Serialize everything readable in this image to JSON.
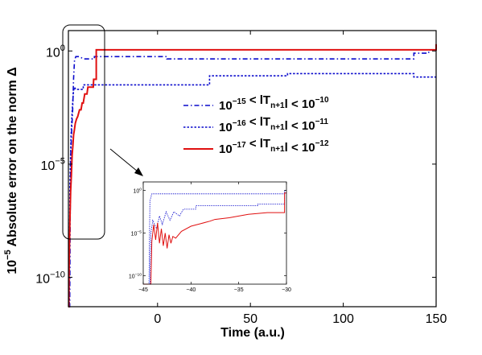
{
  "chart_data": {
    "type": "line",
    "xlabel": "Time (a.u.)",
    "ylabel_prefix": "10",
    "ylabel_prefix_exp": "−5",
    "ylabel": "Absolute error on the norm  Δ",
    "xlim": [
      -48,
      150
    ],
    "ylim_log10": [
      -11.3,
      0.9
    ],
    "x_ticks": [
      0,
      50,
      100,
      150
    ],
    "x_tick_labels": [
      "0",
      "50",
      "100",
      "150"
    ],
    "y_ticks_log10": [
      0,
      -5,
      -10
    ],
    "y_tick_labels": [
      {
        "base": "10",
        "exp": "0"
      },
      {
        "base": "10",
        "exp": "−5"
      },
      {
        "base": "10",
        "exp": "−10"
      }
    ],
    "legend_placement": "center-right",
    "series": [
      {
        "legend": [
          {
            "t": "10"
          },
          {
            "t": "−15",
            "sup": true
          },
          {
            "t": " < lT"
          },
          {
            "t": "n+1",
            "sub": true
          },
          {
            "t": "l < 10"
          },
          {
            "t": "−10",
            "sup": true
          }
        ],
        "color": "#0a0acc",
        "dash": "dashdot",
        "points": [
          [
            -48,
            -11.3
          ],
          [
            -47.3,
            -11.3
          ],
          [
            -47,
            -7
          ],
          [
            -46.7,
            -4.5
          ],
          [
            -46.2,
            -3.5
          ],
          [
            -45.7,
            -2.6
          ],
          [
            -45.2,
            -1.2
          ],
          [
            -44.7,
            -0.4
          ],
          [
            -44,
            -0.25
          ],
          [
            -42,
            -0.25
          ],
          [
            -40,
            -0.35
          ],
          [
            -34,
            -0.35
          ],
          [
            -34,
            -0.25
          ],
          [
            5,
            -0.25
          ],
          [
            5,
            -0.35
          ],
          [
            138,
            -0.35
          ],
          [
            138,
            -0.1
          ],
          [
            146,
            -0.1
          ],
          [
            146,
            0.05
          ],
          [
            150,
            0.05
          ]
        ]
      },
      {
        "legend": [
          {
            "t": "10"
          },
          {
            "t": "−16",
            "sup": true
          },
          {
            "t": " < lT"
          },
          {
            "t": "n+1",
            "sub": true
          },
          {
            "t": "l < 10"
          },
          {
            "t": "−11",
            "sup": true
          }
        ],
        "color": "#0a0acc",
        "dash": "dotted",
        "points": [
          [
            -48,
            -11.3
          ],
          [
            -47.5,
            -11.3
          ],
          [
            -47.2,
            -6
          ],
          [
            -46.6,
            -3.8
          ],
          [
            -46,
            -2.7
          ],
          [
            -45.3,
            -1.8
          ],
          [
            -44.8,
            -1.6
          ],
          [
            -44,
            -1.7
          ],
          [
            -40,
            -1.7
          ],
          [
            -40,
            -1.5
          ],
          [
            28,
            -1.5
          ],
          [
            28,
            -1.1
          ],
          [
            70,
            -1.1
          ],
          [
            70,
            -1.0
          ],
          [
            138,
            -1.0
          ],
          [
            138,
            -1.15
          ],
          [
            150,
            -1.15
          ]
        ]
      },
      {
        "legend": [
          {
            "t": "10"
          },
          {
            "t": "−17",
            "sup": true
          },
          {
            "t": " < lT"
          },
          {
            "t": "n+1",
            "sub": true
          },
          {
            "t": "l < 10"
          },
          {
            "t": "−12",
            "sup": true
          }
        ],
        "color": "#e01010",
        "dash": "solid",
        "points": [
          [
            -48,
            -11.3
          ],
          [
            -47.8,
            -11.3
          ],
          [
            -47.6,
            -9.5
          ],
          [
            -47.2,
            -7.5
          ],
          [
            -46.8,
            -6.2
          ],
          [
            -46.4,
            -5.5
          ],
          [
            -46.0,
            -4.6
          ],
          [
            -45.6,
            -4.2
          ],
          [
            -45.2,
            -3.7
          ],
          [
            -44.8,
            -3.5
          ],
          [
            -44.3,
            -3.2
          ],
          [
            -43.6,
            -3.0
          ],
          [
            -43.0,
            -2.9
          ],
          [
            -42.0,
            -2.6
          ],
          [
            -41.2,
            -2.6
          ],
          [
            -40.6,
            -2.3
          ],
          [
            -40.0,
            -2.3
          ],
          [
            -39.2,
            -1.9
          ],
          [
            -38.0,
            -1.9
          ],
          [
            -37.5,
            -1.6
          ],
          [
            -34.6,
            -1.6
          ],
          [
            -34.4,
            -1.25
          ],
          [
            -33.0,
            -1.25
          ],
          [
            -33.0,
            0.05
          ],
          [
            150,
            0.05
          ],
          [
            150,
            0.3
          ]
        ]
      }
    ],
    "inset": {
      "xlim": [
        -45,
        -30
      ],
      "ylim_log10": [
        -11,
        1
      ],
      "x_ticks": [
        -45,
        -40,
        -35,
        -30
      ],
      "x_tick_labels": [
        "−45",
        "−40",
        "−35",
        "−30"
      ],
      "y_ticks_log10": [
        0,
        -5,
        -10
      ],
      "y_tick_labels": [
        {
          "base": "10",
          "exp": "0"
        },
        {
          "base": "10",
          "exp": "−5"
        },
        {
          "base": "10",
          "exp": "−10"
        }
      ],
      "series": [
        {
          "color": "#0a0acc",
          "dash": "dotted",
          "points": [
            [
              -45,
              -11
            ],
            [
              -44.3,
              -11
            ],
            [
              -44.2,
              -5
            ],
            [
              -44,
              -3.5
            ],
            [
              -43.6,
              -4.5
            ],
            [
              -43.3,
              -3
            ],
            [
              -43,
              -4
            ],
            [
              -42.6,
              -2.5
            ],
            [
              -42.2,
              -3.5
            ],
            [
              -41.8,
              -2.5
            ],
            [
              -41.2,
              -3
            ],
            [
              -40.8,
              -2.2
            ],
            [
              -39.5,
              -2.2
            ],
            [
              -39.5,
              -1.8
            ],
            [
              -33,
              -1.8
            ],
            [
              -33,
              -1.6
            ],
            [
              -30.2,
              -1.6
            ],
            [
              -30.2,
              -0.3
            ],
            [
              -30,
              -0.3
            ]
          ]
        },
        {
          "color": "#0a0acc",
          "dash": "dotted",
          "points": [
            [
              -45,
              -11
            ],
            [
              -44.4,
              -11
            ],
            [
              -44.3,
              -1.2
            ],
            [
              -44.1,
              -0.4
            ],
            [
              -43.7,
              -0.4
            ],
            [
              -30.2,
              -0.4
            ],
            [
              -30.2,
              0
            ],
            [
              -30,
              0
            ]
          ]
        },
        {
          "color": "#e01010",
          "dash": "solid",
          "points": [
            [
              -45,
              -11
            ],
            [
              -44.2,
              -11
            ],
            [
              -44.1,
              -6
            ],
            [
              -43.9,
              -4
            ],
            [
              -43.7,
              -5.8
            ],
            [
              -43.5,
              -3.8
            ],
            [
              -43.3,
              -6.2
            ],
            [
              -43.1,
              -4.5
            ],
            [
              -42.9,
              -6.5
            ],
            [
              -42.7,
              -5
            ],
            [
              -42.5,
              -6.8
            ],
            [
              -42.3,
              -5.2
            ],
            [
              -42.1,
              -6.2
            ],
            [
              -41.9,
              -5.4
            ],
            [
              -41.6,
              -5.6
            ],
            [
              -41,
              -4.8
            ],
            [
              -40,
              -4.2
            ],
            [
              -39,
              -3.9
            ],
            [
              -38,
              -3.6
            ],
            [
              -37.5,
              -3.4
            ],
            [
              -36,
              -3.2
            ],
            [
              -35,
              -3.0
            ],
            [
              -34,
              -2.8
            ],
            [
              -32,
              -2.6
            ],
            [
              -30.2,
              -2.6
            ],
            [
              -30.2,
              -0.3
            ],
            [
              -30,
              -0.3
            ]
          ]
        }
      ]
    }
  }
}
